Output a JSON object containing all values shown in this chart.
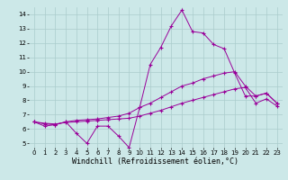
{
  "line1": {
    "x": [
      0,
      1,
      2,
      3,
      4,
      5,
      6,
      7,
      8,
      9,
      10,
      11,
      12,
      13,
      14,
      15,
      16,
      17,
      18,
      19,
      20,
      21,
      22,
      23
    ],
    "y": [
      6.5,
      6.2,
      6.3,
      6.5,
      5.7,
      5.0,
      6.2,
      6.2,
      5.5,
      4.7,
      7.5,
      10.5,
      11.7,
      13.2,
      14.3,
      12.8,
      12.7,
      11.9,
      11.6,
      9.9,
      8.3,
      8.3,
      8.5,
      7.8
    ],
    "color": "#990099",
    "marker": "+"
  },
  "line2": {
    "x": [
      0,
      1,
      2,
      3,
      4,
      5,
      6,
      7,
      8,
      9,
      10,
      11,
      12,
      13,
      14,
      15,
      16,
      17,
      18,
      19,
      20,
      21,
      22,
      23
    ],
    "y": [
      6.5,
      6.35,
      6.3,
      6.5,
      6.6,
      6.65,
      6.7,
      6.8,
      6.9,
      7.1,
      7.5,
      7.8,
      8.2,
      8.6,
      9.0,
      9.2,
      9.5,
      9.7,
      9.9,
      10.0,
      9.0,
      8.3,
      8.5,
      7.8
    ],
    "color": "#990099",
    "marker": "+"
  },
  "line3": {
    "x": [
      0,
      1,
      2,
      3,
      4,
      5,
      6,
      7,
      8,
      9,
      10,
      11,
      12,
      13,
      14,
      15,
      16,
      17,
      18,
      19,
      20,
      21,
      22,
      23
    ],
    "y": [
      6.5,
      6.4,
      6.35,
      6.45,
      6.5,
      6.55,
      6.6,
      6.65,
      6.7,
      6.75,
      6.9,
      7.1,
      7.3,
      7.55,
      7.8,
      8.0,
      8.2,
      8.4,
      8.6,
      8.8,
      8.9,
      7.8,
      8.1,
      7.6
    ],
    "color": "#990099",
    "marker": "+"
  },
  "xlim": [
    -0.5,
    23.5
  ],
  "ylim": [
    4.7,
    14.5
  ],
  "yticks": [
    5,
    6,
    7,
    8,
    9,
    10,
    11,
    12,
    13,
    14
  ],
  "xticks": [
    0,
    1,
    2,
    3,
    4,
    5,
    6,
    7,
    8,
    9,
    10,
    11,
    12,
    13,
    14,
    15,
    16,
    17,
    18,
    19,
    20,
    21,
    22,
    23
  ],
  "xlabel": "Windchill (Refroidissement éolien,°C)",
  "bg_color": "#cce8e8",
  "grid_color": "#aacccc",
  "line_color": "#990099",
  "tick_fontsize": 5.0,
  "xlabel_fontsize": 6.0
}
